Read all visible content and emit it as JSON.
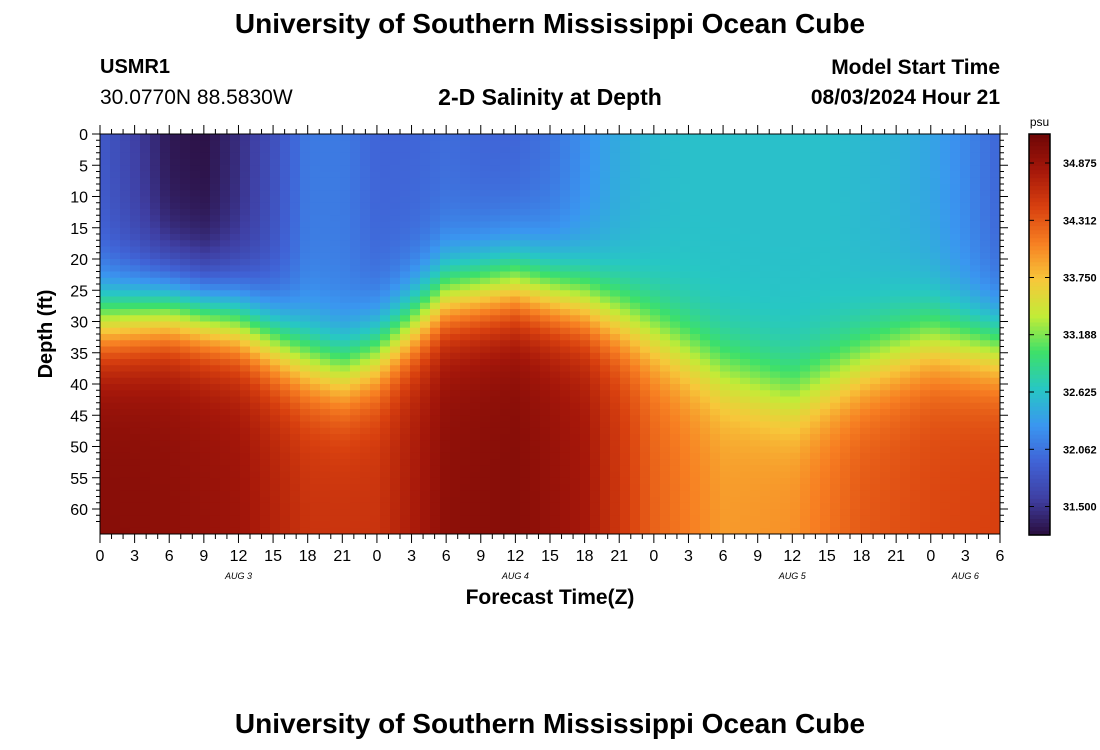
{
  "header": {
    "title": "University of Southern Mississippi Ocean Cube",
    "station": "USMR1",
    "coords": "30.0770N  88.5830W",
    "subtitle": "2-D Salinity at Depth",
    "model_start_label": "Model Start Time",
    "model_start_value": "08/03/2024 Hour 21"
  },
  "footer": {
    "title": "University of Southern Mississippi Ocean Cube"
  },
  "chart_data": {
    "type": "heatmap",
    "title": "2-D Salinity at Depth",
    "xlabel": "Forecast Time(Z)",
    "ylabel": "Depth (ft)",
    "x_tick_labels": [
      "0",
      "3",
      "6",
      "9",
      "12",
      "15",
      "18",
      "21",
      "0",
      "3",
      "6",
      "9",
      "12",
      "15",
      "18",
      "21",
      "0",
      "3",
      "6",
      "9",
      "12",
      "15",
      "18",
      "21",
      "0",
      "3",
      "6"
    ],
    "date_labels": [
      {
        "label": "AUG 3",
        "hour": 12
      },
      {
        "label": "AUG 4",
        "hour": 36
      },
      {
        "label": "AUG 5",
        "hour": 60
      },
      {
        "label": "AUG 6",
        "hour": 75
      }
    ],
    "xlim_hours": [
      0,
      78
    ],
    "ylim_depth_ft": [
      0,
      64
    ],
    "y_ticks": [
      0,
      5,
      10,
      15,
      20,
      25,
      30,
      35,
      40,
      45,
      50,
      55,
      60
    ],
    "colorbar": {
      "unit": "psu",
      "ticks": [
        "34.875",
        "34.312",
        "33.750",
        "33.188",
        "32.625",
        "32.062",
        "31.500"
      ],
      "range": [
        31.22,
        35.16
      ],
      "colors": [
        "#2a0d3d",
        "#3f3fa3",
        "#4063d6",
        "#3a96f0",
        "#27c7c4",
        "#3de06a",
        "#c2ec37",
        "#f7c73a",
        "#f77f22",
        "#d8400f",
        "#a5170a",
        "#6e0606"
      ]
    },
    "surface_salinity": {
      "hours": [
        0,
        3,
        6,
        9,
        12,
        15,
        18,
        21,
        24,
        27,
        30,
        33,
        36,
        39,
        42,
        45,
        48,
        51,
        54,
        57,
        60,
        63,
        66,
        69,
        72,
        75,
        78
      ],
      "psu": [
        31.85,
        31.6,
        31.3,
        31.25,
        31.45,
        31.75,
        32.1,
        32.1,
        31.95,
        31.95,
        32.0,
        31.95,
        31.95,
        32.05,
        32.25,
        32.45,
        32.55,
        32.6,
        32.6,
        32.6,
        32.6,
        32.6,
        32.55,
        32.5,
        32.4,
        32.2,
        31.95
      ]
    },
    "bottom_salinity": {
      "hours": [
        0,
        6,
        12,
        18,
        24,
        30,
        36,
        42,
        48,
        54,
        60,
        66,
        72,
        78
      ],
      "psu": [
        35.0,
        34.95,
        34.85,
        34.55,
        34.55,
        34.95,
        35.0,
        34.8,
        34.25,
        33.95,
        34.0,
        34.3,
        34.4,
        34.45
      ]
    },
    "halocline_depth_ft": {
      "hours": [
        0,
        6,
        12,
        18,
        21,
        24,
        30,
        36,
        42,
        48,
        54,
        60,
        66,
        72,
        78
      ],
      "depth": [
        30,
        28,
        30,
        36,
        38,
        35,
        26,
        24,
        27,
        32,
        38,
        42,
        37,
        33,
        34
      ]
    }
  }
}
